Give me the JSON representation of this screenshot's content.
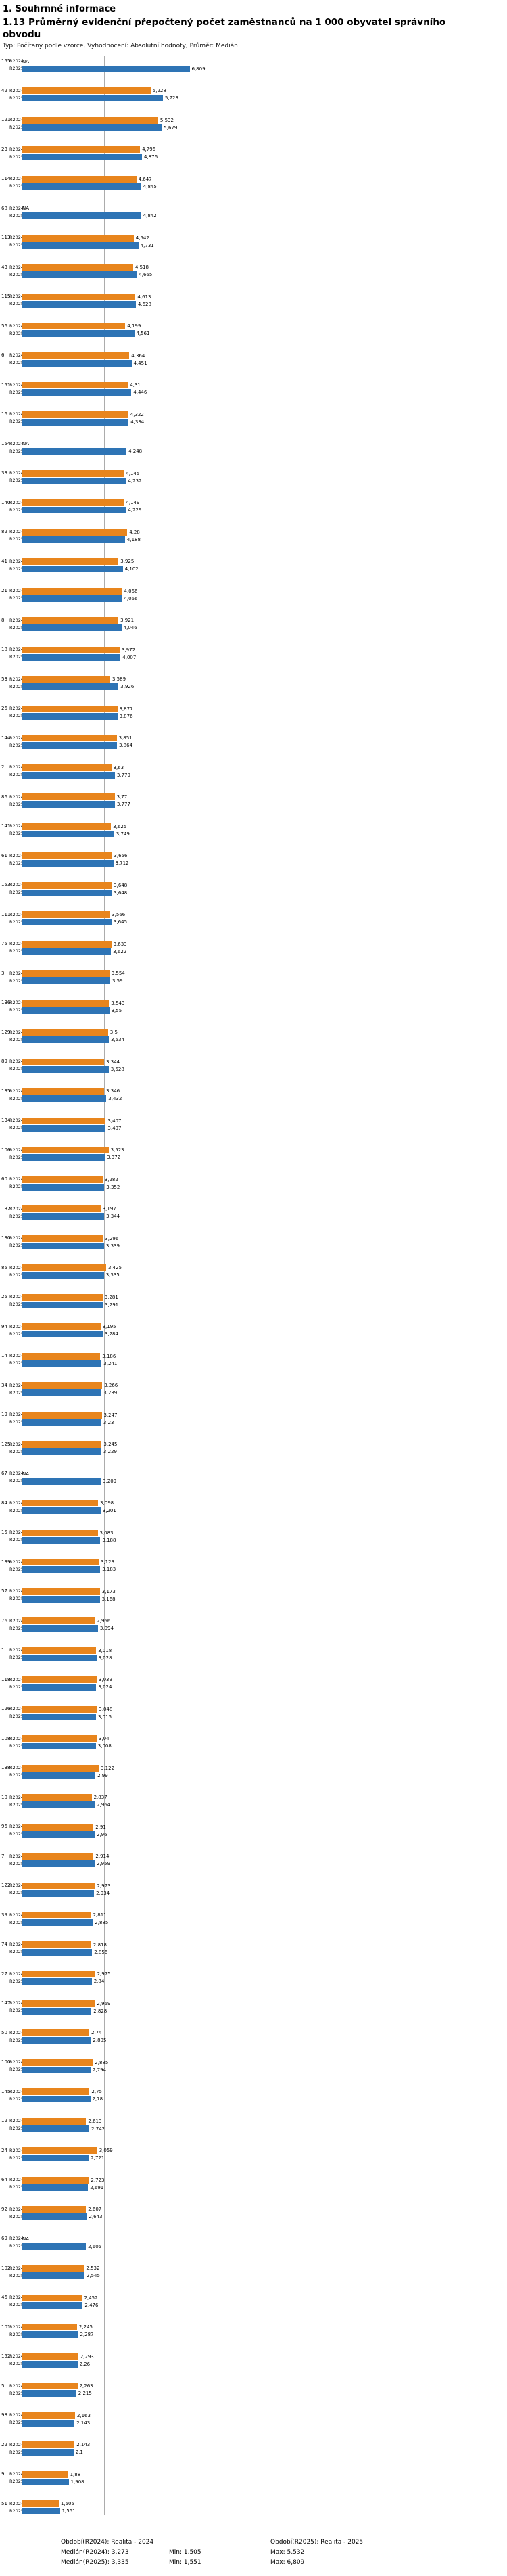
{
  "header": {
    "section": "1. Souhrnné informace",
    "title": "1.13 Průměrný evidenční přepočtený počet zaměstnanců na 1 000 obyvatel správního obvodu",
    "meta": "Typ: Počítaný podle vzorce, Vyhodnocení: Absolutní hodnoty, Průměr: Medián"
  },
  "chart_data": {
    "type": "bar",
    "orientation": "horizontal",
    "title": "1.13 Průměrný evidenční přepočtený počet zaměstnanců na 1 000 obyvatel správního obvodu",
    "series_labels": [
      "R2024",
      "R2025"
    ],
    "na_label": "NA",
    "colors": {
      "R2024": "#e8851d",
      "R2025": "#2e74b5"
    },
    "median_lines": {
      "R2024": 3.273,
      "R2025": 3.335
    },
    "stats": {
      "R2024": {
        "median": 3.273,
        "min": 1.505,
        "max": 5.532
      },
      "R2025": {
        "median": 3.335,
        "min": 1.551,
        "max": 6.809
      }
    },
    "x_range": [
      0,
      7
    ],
    "grid": false,
    "groups": [
      {
        "id": "155",
        "values": [
          null,
          6.809
        ]
      },
      {
        "id": "42",
        "values": [
          5.228,
          5.723
        ]
      },
      {
        "id": "121",
        "values": [
          5.532,
          5.679
        ]
      },
      {
        "id": "23",
        "values": [
          4.796,
          4.876
        ]
      },
      {
        "id": "114",
        "values": [
          4.647,
          4.845
        ]
      },
      {
        "id": "68",
        "values": [
          null,
          4.842
        ]
      },
      {
        "id": "113",
        "values": [
          4.542,
          4.731
        ]
      },
      {
        "id": "43",
        "values": [
          4.518,
          4.665
        ]
      },
      {
        "id": "115",
        "values": [
          4.613,
          4.628
        ]
      },
      {
        "id": "56",
        "values": [
          4.199,
          4.561
        ]
      },
      {
        "id": "6",
        "values": [
          4.364,
          4.451
        ]
      },
      {
        "id": "151",
        "values": [
          4.31,
          4.446
        ]
      },
      {
        "id": "16",
        "values": [
          4.322,
          4.334
        ]
      },
      {
        "id": "154",
        "values": [
          null,
          4.248
        ]
      },
      {
        "id": "33",
        "values": [
          4.145,
          4.232
        ]
      },
      {
        "id": "140",
        "values": [
          4.149,
          4.229
        ]
      },
      {
        "id": "82",
        "values": [
          4.28,
          4.188
        ]
      },
      {
        "id": "41",
        "values": [
          3.925,
          4.102
        ]
      },
      {
        "id": "21",
        "values": [
          4.066,
          4.066
        ]
      },
      {
        "id": "8",
        "values": [
          3.921,
          4.046
        ]
      },
      {
        "id": "18",
        "values": [
          3.972,
          4.007
        ]
      },
      {
        "id": "53",
        "values": [
          3.589,
          3.926
        ]
      },
      {
        "id": "26",
        "values": [
          3.877,
          3.876
        ]
      },
      {
        "id": "144",
        "values": [
          3.851,
          3.864
        ]
      },
      {
        "id": "2",
        "values": [
          3.63,
          3.779
        ]
      },
      {
        "id": "86",
        "values": [
          3.77,
          3.777
        ]
      },
      {
        "id": "141",
        "values": [
          3.625,
          3.749
        ]
      },
      {
        "id": "61",
        "values": [
          3.656,
          3.712
        ]
      },
      {
        "id": "153",
        "values": [
          3.648,
          3.648
        ]
      },
      {
        "id": "111",
        "values": [
          3.566,
          3.645
        ]
      },
      {
        "id": "75",
        "values": [
          3.633,
          3.622
        ]
      },
      {
        "id": "3",
        "values": [
          3.554,
          3.59
        ]
      },
      {
        "id": "136",
        "values": [
          3.543,
          3.55
        ]
      },
      {
        "id": "129",
        "values": [
          3.5,
          3.534
        ]
      },
      {
        "id": "89",
        "values": [
          3.344,
          3.528
        ]
      },
      {
        "id": "135",
        "values": [
          3.346,
          3.432
        ]
      },
      {
        "id": "134",
        "values": [
          3.407,
          3.407
        ]
      },
      {
        "id": "106",
        "values": [
          3.523,
          3.372
        ]
      },
      {
        "id": "60",
        "values": [
          3.282,
          3.352
        ]
      },
      {
        "id": "132",
        "values": [
          3.197,
          3.344
        ]
      },
      {
        "id": "130",
        "values": [
          3.296,
          3.339
        ]
      },
      {
        "id": "85",
        "values": [
          3.425,
          3.335
        ]
      },
      {
        "id": "25",
        "values": [
          3.281,
          3.291
        ]
      },
      {
        "id": "94",
        "values": [
          3.195,
          3.284
        ]
      },
      {
        "id": "14",
        "values": [
          3.186,
          3.241
        ]
      },
      {
        "id": "34",
        "values": [
          3.266,
          3.239
        ]
      },
      {
        "id": "19",
        "values": [
          3.247,
          3.23
        ]
      },
      {
        "id": "125",
        "values": [
          3.245,
          3.229
        ]
      },
      {
        "id": "67",
        "values": [
          null,
          3.209
        ]
      },
      {
        "id": "84",
        "values": [
          3.098,
          3.201
        ]
      },
      {
        "id": "15",
        "values": [
          3.083,
          3.188
        ]
      },
      {
        "id": "139",
        "values": [
          3.123,
          3.183
        ]
      },
      {
        "id": "57",
        "values": [
          3.173,
          3.168
        ]
      },
      {
        "id": "76",
        "values": [
          2.966,
          3.094
        ]
      },
      {
        "id": "1",
        "values": [
          3.018,
          3.028
        ]
      },
      {
        "id": "118",
        "values": [
          3.039,
          3.024
        ]
      },
      {
        "id": "126",
        "values": [
          3.048,
          3.015
        ]
      },
      {
        "id": "108",
        "values": [
          3.04,
          3.008
        ]
      },
      {
        "id": "138",
        "values": [
          3.122,
          2.99
        ]
      },
      {
        "id": "10",
        "values": [
          2.837,
          2.964
        ]
      },
      {
        "id": "96",
        "values": [
          2.91,
          2.96
        ]
      },
      {
        "id": "7",
        "values": [
          2.914,
          2.959
        ]
      },
      {
        "id": "122",
        "values": [
          2.973,
          2.934
        ]
      },
      {
        "id": "39",
        "values": [
          2.811,
          2.885
        ]
      },
      {
        "id": "74",
        "values": [
          2.818,
          2.856
        ]
      },
      {
        "id": "27",
        "values": [
          2.975,
          2.84
        ]
      },
      {
        "id": "147",
        "values": [
          2.969,
          2.828
        ]
      },
      {
        "id": "50",
        "values": [
          2.74,
          2.805
        ]
      },
      {
        "id": "100",
        "values": [
          2.885,
          2.794
        ]
      },
      {
        "id": "145",
        "values": [
          2.75,
          2.78
        ]
      },
      {
        "id": "12",
        "values": [
          2.613,
          2.742
        ]
      },
      {
        "id": "24",
        "values": [
          3.059,
          2.721
        ]
      },
      {
        "id": "64",
        "values": [
          2.723,
          2.691
        ]
      },
      {
        "id": "92",
        "values": [
          2.607,
          2.643
        ]
      },
      {
        "id": "69",
        "values": [
          null,
          2.605
        ]
      },
      {
        "id": "102",
        "values": [
          2.532,
          2.545
        ]
      },
      {
        "id": "46",
        "values": [
          2.452,
          2.476
        ]
      },
      {
        "id": "101",
        "values": [
          2.245,
          2.287
        ]
      },
      {
        "id": "152",
        "values": [
          2.293,
          2.26
        ]
      },
      {
        "id": "5",
        "values": [
          2.263,
          2.215
        ]
      },
      {
        "id": "98",
        "values": [
          2.163,
          2.143
        ]
      },
      {
        "id": "22",
        "values": [
          2.143,
          2.1
        ]
      },
      {
        "id": "9",
        "values": [
          1.88,
          1.908
        ]
      },
      {
        "id": "51",
        "values": [
          1.505,
          1.551
        ]
      }
    ]
  },
  "footer": {
    "period_r2024": "Období(R2024): Realita - 2024",
    "period_r2025": "Období(R2025): Realita - 2025",
    "median_r2024": "Medián(R2024): 3,273",
    "min_r2024": "Min: 1,505",
    "max_r2024": "Max: 5,532",
    "median_r2025": "Medián(R2025): 3,335",
    "min_r2025": "Min: 1,551",
    "max_r2025": "Max: 6,809"
  }
}
